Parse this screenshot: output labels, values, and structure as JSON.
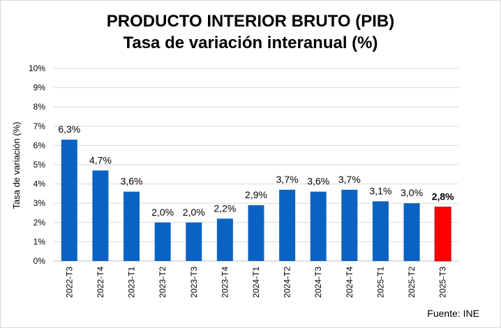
{
  "chart_data": {
    "type": "bar",
    "title": "PRODUCTO INTERIOR BRUTO (PIB)",
    "subtitle": "Tasa de variación interanual (%)",
    "ylabel": "Tasa de variación (%)",
    "xlabel": "",
    "ylim": [
      0,
      10
    ],
    "yticks": [
      "0%",
      "1%",
      "2%",
      "3%",
      "4%",
      "5%",
      "6%",
      "7%",
      "8%",
      "9%",
      "10%"
    ],
    "grid": true,
    "categories": [
      "2022-T3",
      "2022-T4",
      "2023-T1",
      "2023-T2",
      "2023-T3",
      "2023-T4",
      "2024-T1",
      "2024-T2",
      "2024-T3",
      "2024-T4",
      "2025-T1",
      "2025-T2",
      "2025-T3"
    ],
    "values": [
      6.3,
      4.7,
      3.6,
      2.0,
      2.0,
      2.2,
      2.9,
      3.7,
      3.6,
      3.7,
      3.1,
      3.0,
      2.8
    ],
    "data_labels": [
      "6,3%",
      "4,7%",
      "3,6%",
      "2,0%",
      "2,0%",
      "2,2%",
      "2,9%",
      "3,7%",
      "3,6%",
      "3,7%",
      "3,1%",
      "3,0%",
      "2,8%"
    ],
    "highlight_index": 12,
    "colors": {
      "bar": "#0a63c2",
      "highlight": "#ff0000",
      "grid": "#d9d9d9"
    },
    "source": "Fuente: INE"
  }
}
